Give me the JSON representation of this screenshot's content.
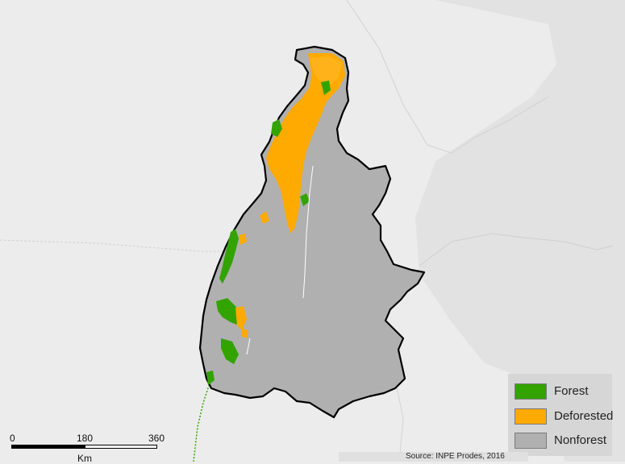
{
  "map": {
    "colors": {
      "background": "#ececec",
      "region_fill": "#b0b0b0",
      "region_border": "#000000",
      "forest": "#33a300",
      "deforested": "#ffaa00",
      "nonforest": "#b0b0b0",
      "terrain_shade": "#dcdcdc"
    }
  },
  "legend": {
    "items": [
      {
        "label": "Forest",
        "color": "#33a300"
      },
      {
        "label": "Deforested",
        "color": "#ffaa00"
      },
      {
        "label": "Nonforest",
        "color": "#b0b0b0"
      }
    ]
  },
  "scalebar": {
    "ticks": [
      "0",
      "180",
      "360"
    ],
    "unit": "Km"
  },
  "source": {
    "text": "Source: INPE Prodes, 2016"
  }
}
